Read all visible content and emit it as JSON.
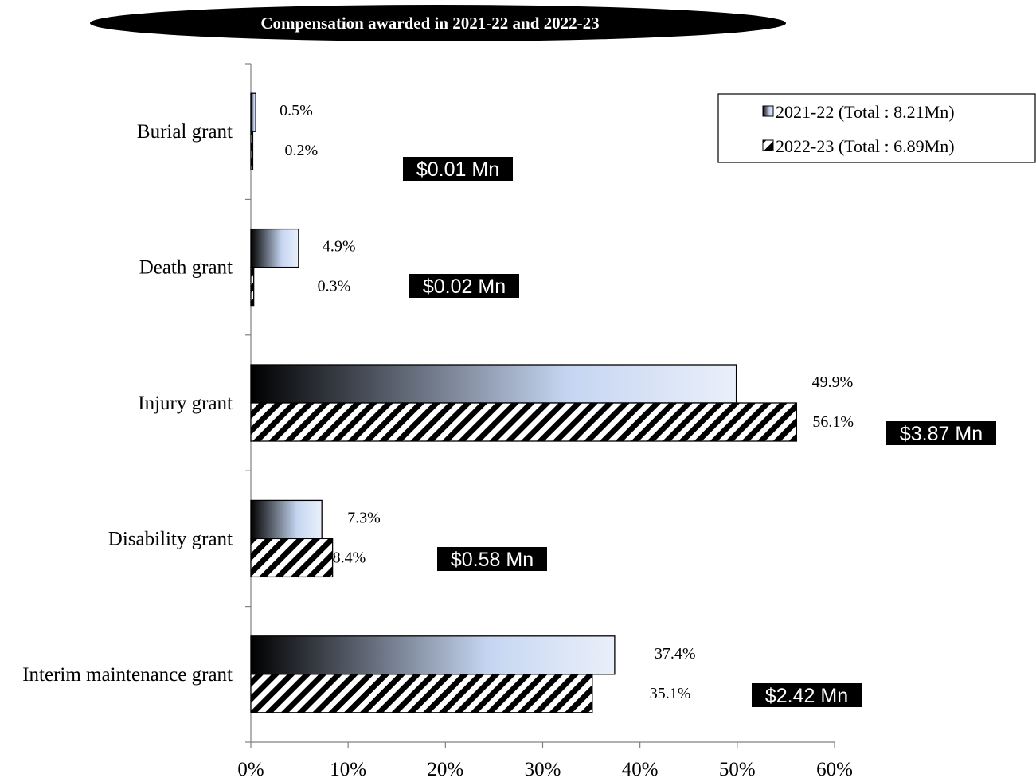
{
  "chart_data": {
    "type": "bar",
    "orientation": "horizontal",
    "title": "Compensation awarded in 2021-22 and 2022-23",
    "categories": [
      "Burial grant",
      "Death grant",
      "Injury grant",
      "Disability grant",
      "Interim maintenance grant"
    ],
    "series": [
      {
        "name": "2021-22 (Total : 8.21Mn)",
        "values": [
          0.5,
          4.9,
          49.9,
          7.3,
          37.4
        ],
        "value_labels": [
          "0.5%",
          "4.9%",
          "49.9%",
          "7.3%",
          "37.4%"
        ]
      },
      {
        "name": "2022-23 (Total : 6.89Mn)",
        "values": [
          0.2,
          0.3,
          56.1,
          8.4,
          35.1
        ],
        "value_labels": [
          "0.2%",
          "0.3%",
          "56.1%",
          "8.4%",
          "35.1%"
        ]
      }
    ],
    "amount_labels": [
      "$0.01 Mn",
      "$0.02 Mn",
      "$3.87 Mn",
      "$0.58 Mn",
      "$2.42 Mn"
    ],
    "xlim": [
      0,
      60
    ],
    "xticks": [
      0,
      10,
      20,
      30,
      40,
      50,
      60
    ],
    "xtick_labels": [
      "0%",
      "10%",
      "20%",
      "30%",
      "40%",
      "50%",
      "60%"
    ],
    "xlabel": "",
    "ylabel": "",
    "grid": false,
    "legend_position": "top-right",
    "colors": {
      "gradient_dark": "#000000",
      "gradient_mid": "#c5d5f1",
      "gradient_light": "#eaf0fa",
      "hatch": "#000000",
      "label_box": "#000000",
      "label_text": "#ffffff",
      "title_ellipse": "#000000"
    }
  }
}
